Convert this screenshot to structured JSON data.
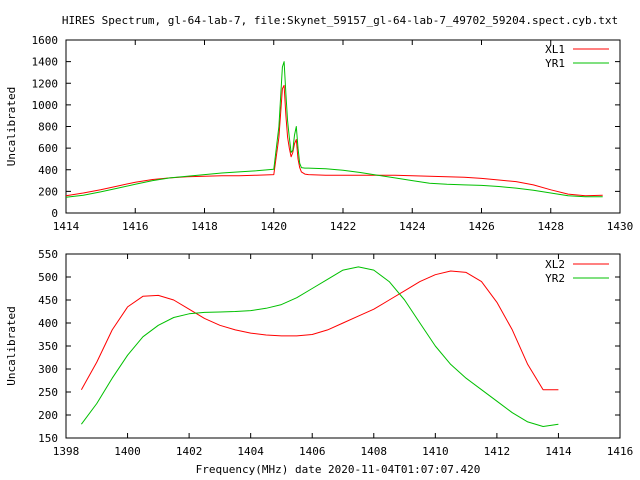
{
  "figure": {
    "title": "HIRES Spectrum, gl-64-lab-7, file:Skynet_59157_gl-64-lab-7_49702_59204.spect.cyb.txt",
    "xlabel": "Frequency(MHz) date 2020-11-04T01:07:07.420"
  },
  "colors": {
    "red": "#ff0000",
    "green": "#00c000",
    "axis": "#000000",
    "background": "#ffffff"
  },
  "chart_data": [
    {
      "type": "line",
      "title": "",
      "xlabel": "",
      "ylabel": "Uncalibrated",
      "xlim": [
        1414,
        1430
      ],
      "ylim": [
        0,
        1600
      ],
      "xticks": [
        1414,
        1416,
        1418,
        1420,
        1422,
        1424,
        1426,
        1428,
        1430
      ],
      "yticks": [
        0,
        200,
        400,
        600,
        800,
        1000,
        1200,
        1400,
        1600
      ],
      "legend": "top-right",
      "grid": false,
      "series": [
        {
          "name": "XL1",
          "color": "#ff0000",
          "x": [
            1414.0,
            1414.5,
            1415.0,
            1415.5,
            1416.0,
            1416.5,
            1417.0,
            1417.5,
            1418.0,
            1418.5,
            1419.0,
            1419.5,
            1420.0,
            1420.15,
            1420.25,
            1420.3,
            1420.35,
            1420.4,
            1420.45,
            1420.5,
            1420.55,
            1420.6,
            1420.65,
            1420.7,
            1420.75,
            1420.8,
            1420.9,
            1421.0,
            1421.5,
            1422.0,
            1422.5,
            1423.0,
            1423.5,
            1424.0,
            1424.5,
            1425.0,
            1425.5,
            1426.0,
            1426.5,
            1427.0,
            1427.5,
            1428.0,
            1428.5,
            1429.0,
            1429.5
          ],
          "values": [
            160,
            185,
            215,
            250,
            285,
            310,
            325,
            335,
            340,
            345,
            345,
            350,
            355,
            700,
            1150,
            1180,
            900,
            700,
            600,
            520,
            560,
            640,
            680,
            500,
            420,
            380,
            360,
            355,
            350,
            350,
            350,
            350,
            350,
            345,
            340,
            335,
            330,
            320,
            305,
            290,
            260,
            215,
            175,
            160,
            165
          ]
        },
        {
          "name": "YR1",
          "color": "#00c000",
          "x": [
            1414.0,
            1414.5,
            1415.0,
            1415.5,
            1416.0,
            1416.5,
            1417.0,
            1417.5,
            1418.0,
            1418.5,
            1419.0,
            1419.5,
            1420.0,
            1420.15,
            1420.25,
            1420.3,
            1420.35,
            1420.4,
            1420.45,
            1420.5,
            1420.55,
            1420.6,
            1420.65,
            1420.7,
            1420.75,
            1420.8,
            1420.9,
            1421.0,
            1421.5,
            1422.0,
            1422.5,
            1423.0,
            1423.5,
            1424.0,
            1424.5,
            1425.0,
            1425.5,
            1426.0,
            1426.5,
            1427.0,
            1427.5,
            1428.0,
            1428.5,
            1429.0,
            1429.5
          ],
          "values": [
            145,
            165,
            195,
            230,
            265,
            300,
            325,
            340,
            355,
            370,
            380,
            390,
            405,
            800,
            1350,
            1400,
            1100,
            850,
            700,
            560,
            580,
            720,
            800,
            600,
            460,
            420,
            415,
            415,
            410,
            395,
            375,
            350,
            325,
            300,
            275,
            265,
            260,
            255,
            245,
            230,
            210,
            185,
            160,
            150,
            150
          ]
        }
      ]
    },
    {
      "type": "line",
      "title": "",
      "xlabel": "Frequency(MHz) date 2020-11-04T01:07:07.420",
      "ylabel": "Uncalibrated",
      "xlim": [
        1398,
        1416
      ],
      "ylim": [
        150,
        550
      ],
      "xticks": [
        1398,
        1400,
        1402,
        1404,
        1406,
        1408,
        1410,
        1412,
        1414,
        1416
      ],
      "yticks": [
        150,
        200,
        250,
        300,
        350,
        400,
        450,
        500,
        550
      ],
      "legend": "top-right",
      "grid": false,
      "series": [
        {
          "name": "XL2",
          "color": "#ff0000",
          "x": [
            1398.5,
            1399.0,
            1399.5,
            1400.0,
            1400.5,
            1401.0,
            1401.5,
            1402.0,
            1402.5,
            1403.0,
            1403.5,
            1404.0,
            1404.5,
            1405.0,
            1405.5,
            1406.0,
            1406.5,
            1407.0,
            1407.5,
            1408.0,
            1408.5,
            1409.0,
            1409.5,
            1410.0,
            1410.5,
            1411.0,
            1411.5,
            1412.0,
            1412.5,
            1413.0,
            1413.5,
            1414.0
          ],
          "values": [
            255,
            315,
            385,
            435,
            458,
            460,
            450,
            430,
            410,
            395,
            385,
            378,
            374,
            372,
            372,
            375,
            385,
            400,
            415,
            430,
            450,
            470,
            490,
            505,
            513,
            510,
            490,
            445,
            385,
            310,
            255,
            255
          ]
        },
        {
          "name": "YR2",
          "color": "#00c000",
          "x": [
            1398.5,
            1399.0,
            1399.5,
            1400.0,
            1400.5,
            1401.0,
            1401.5,
            1402.0,
            1402.5,
            1403.0,
            1403.5,
            1404.0,
            1404.5,
            1405.0,
            1405.5,
            1406.0,
            1406.5,
            1407.0,
            1407.5,
            1408.0,
            1408.5,
            1409.0,
            1409.5,
            1410.0,
            1410.5,
            1411.0,
            1411.5,
            1412.0,
            1412.5,
            1413.0,
            1413.5,
            1414.0
          ],
          "values": [
            180,
            225,
            280,
            330,
            370,
            395,
            412,
            420,
            423,
            424,
            425,
            427,
            432,
            440,
            455,
            475,
            495,
            515,
            522,
            515,
            490,
            450,
            400,
            350,
            310,
            280,
            255,
            230,
            205,
            185,
            175,
            180
          ]
        }
      ]
    }
  ]
}
